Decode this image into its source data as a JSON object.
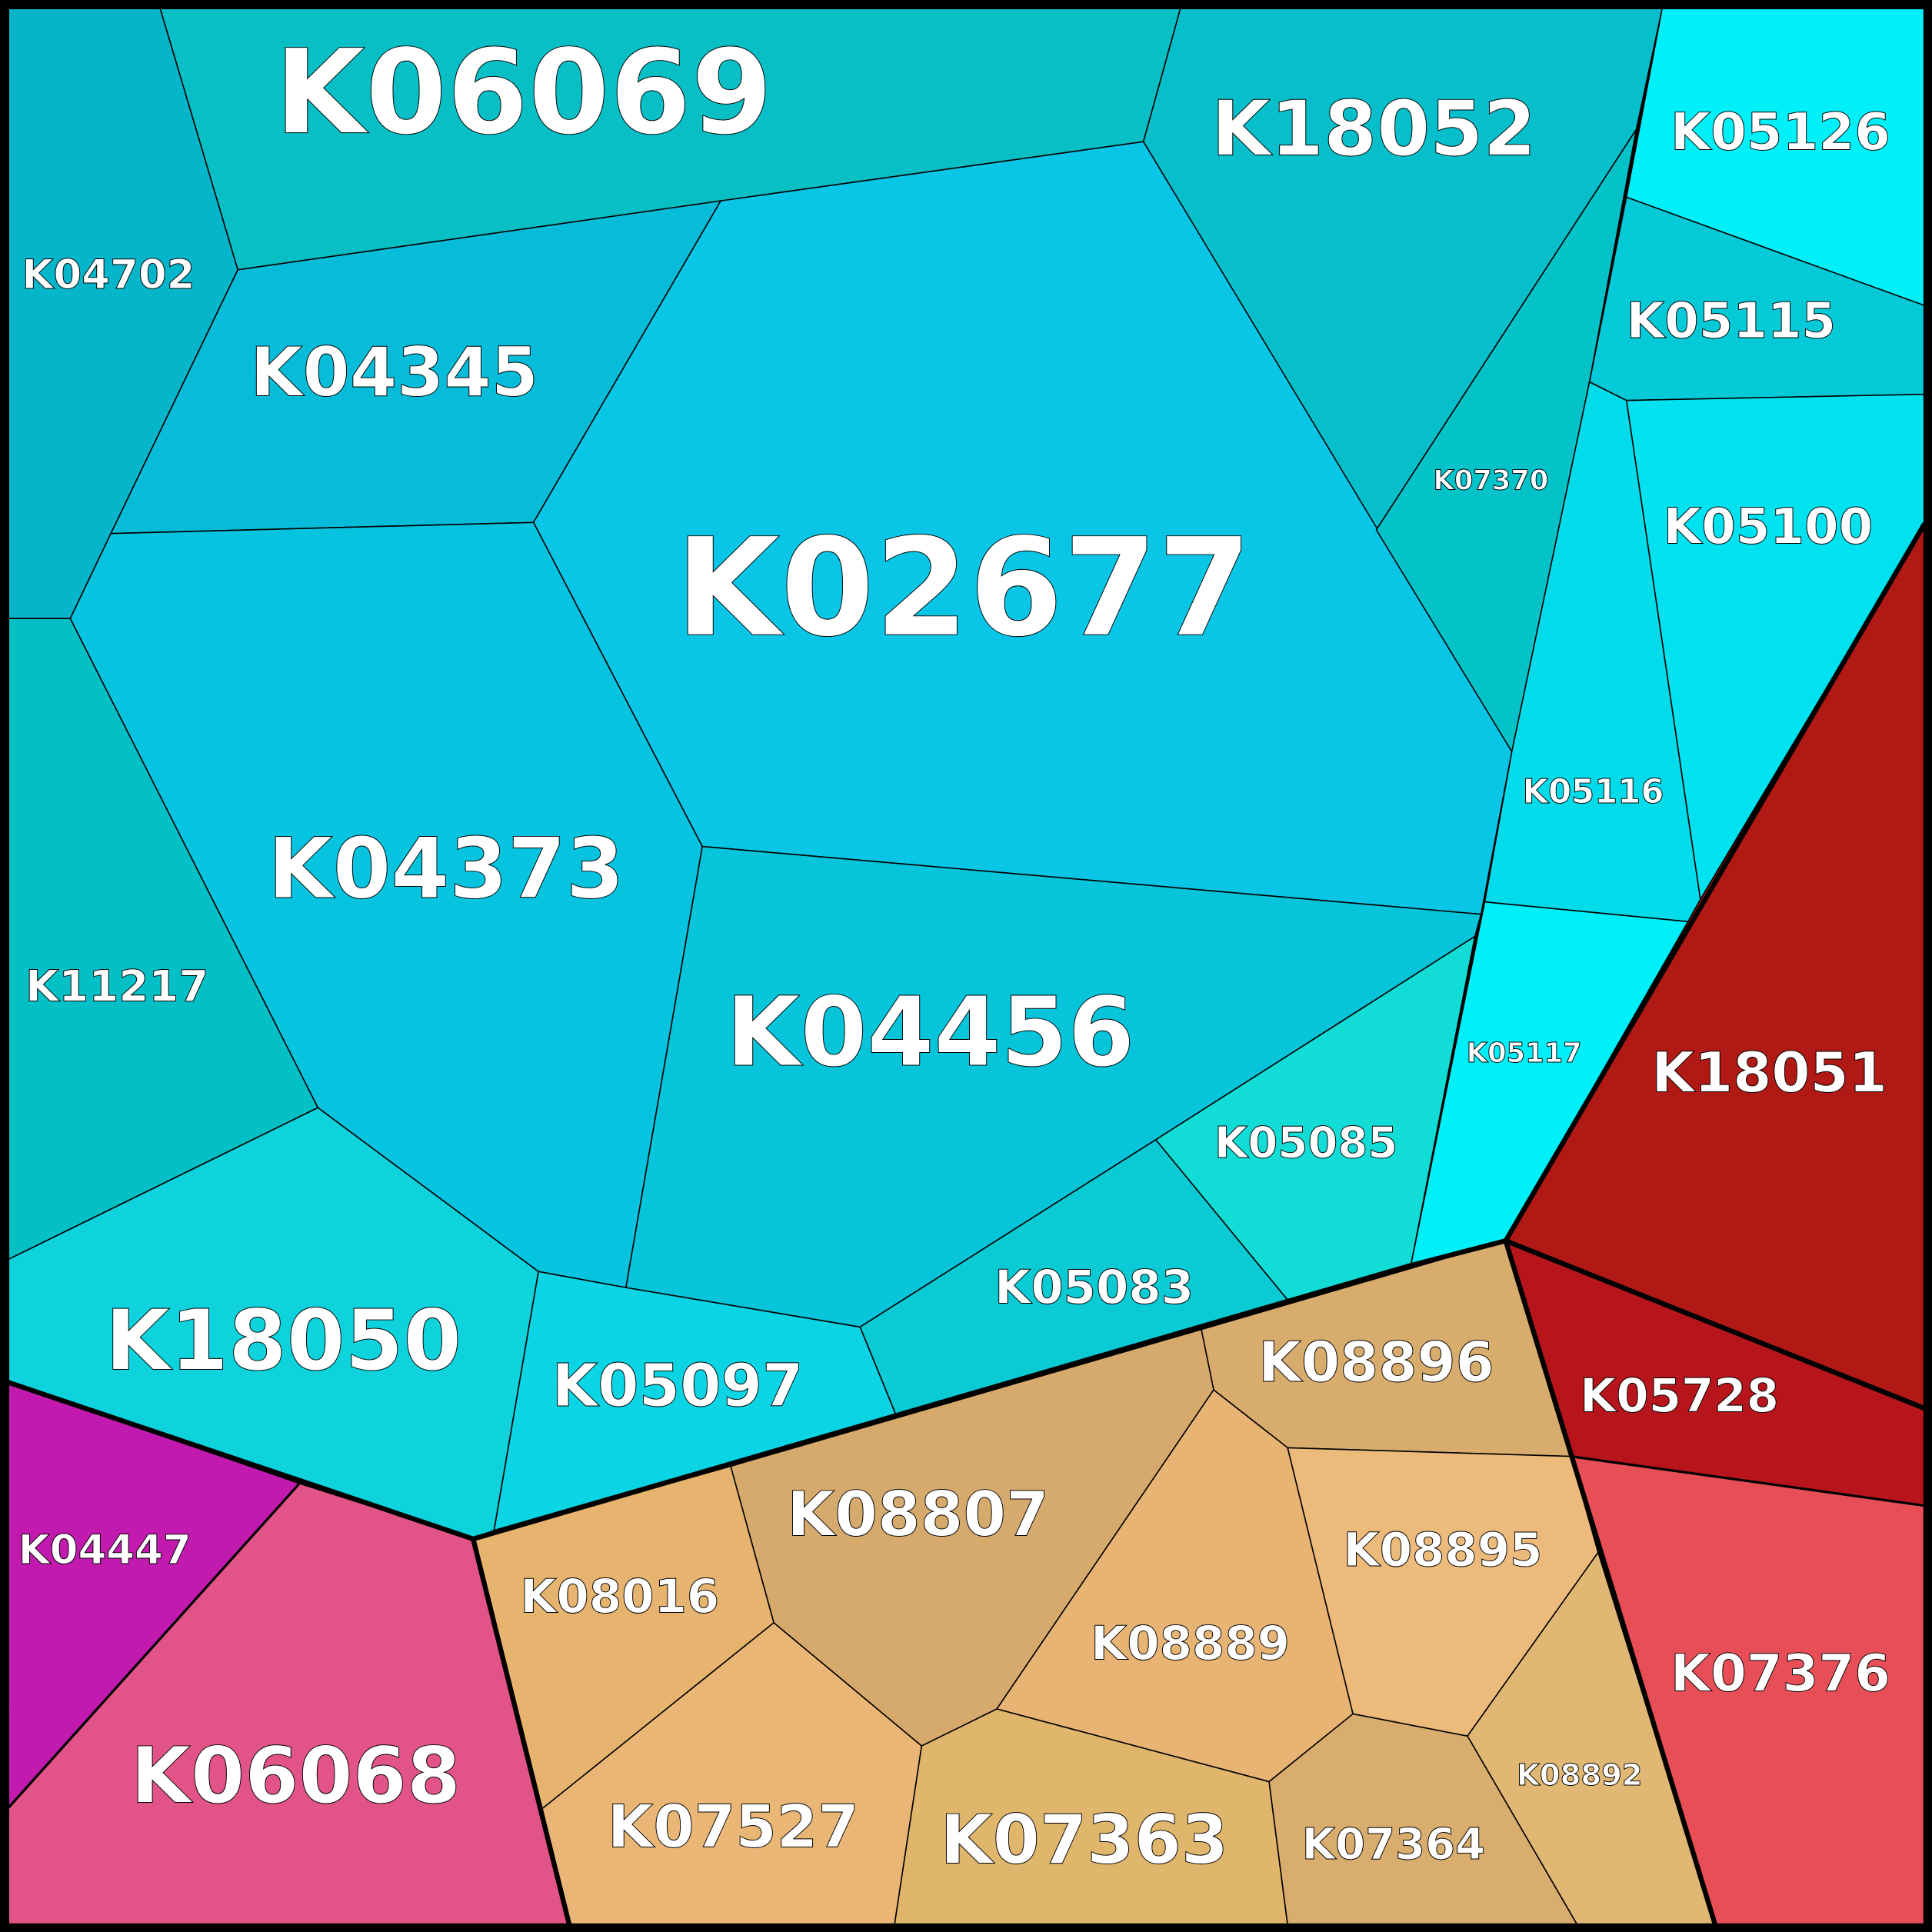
{
  "cells": [
    {
      "label": "K06069"
    },
    {
      "label": "K18052"
    },
    {
      "label": "K05126"
    },
    {
      "label": "K04702"
    },
    {
      "label": "K04345"
    },
    {
      "label": "K02677"
    },
    {
      "label": "K05115"
    },
    {
      "label": "K07370"
    },
    {
      "label": "K05100"
    },
    {
      "label": "K05116"
    },
    {
      "label": "K04373"
    },
    {
      "label": "K11217"
    },
    {
      "label": "K04456"
    },
    {
      "label": "K05117"
    },
    {
      "label": "K18051"
    },
    {
      "label": "K05085"
    },
    {
      "label": "K05083"
    },
    {
      "label": "K18050"
    },
    {
      "label": "K05097"
    },
    {
      "label": "K08896"
    },
    {
      "label": "K05728"
    },
    {
      "label": "K08807"
    },
    {
      "label": "K04447"
    },
    {
      "label": "K08895"
    },
    {
      "label": "K08016"
    },
    {
      "label": "K08889"
    },
    {
      "label": "K07376"
    },
    {
      "label": "K06068"
    },
    {
      "label": "K08892"
    },
    {
      "label": "K07527"
    },
    {
      "label": "K07363"
    },
    {
      "label": "K07364"
    }
  ]
}
